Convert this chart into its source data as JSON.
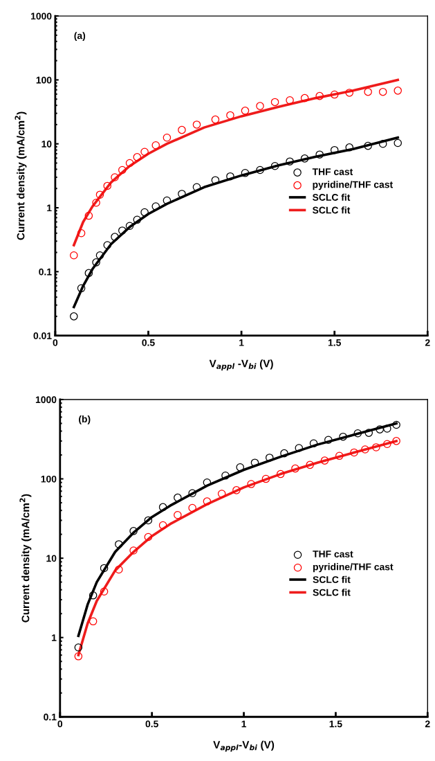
{
  "chart_data": [
    {
      "type": "scatter",
      "xlabel": "V$_{appl}$ -V$_{bi}$ (V)",
      "ylabel": "Current density (mA/cm$^{2}$)",
      "annotations": [
        "(a)"
      ],
      "log": "y",
      "legend": "center right",
      "xlim": [
        0,
        2
      ],
      "xticks": [
        0,
        0.5,
        1,
        1.5,
        2
      ],
      "ylim": [
        0.01,
        1000
      ],
      "yticks": [
        0.01,
        0.1,
        1,
        10,
        100,
        1000
      ],
      "series": [
        {
          "name": "THF cast",
          "marker": "circle",
          "color": "#000000",
          "x": [
            0.1,
            0.14,
            0.18,
            0.22,
            0.24,
            0.28,
            0.32,
            0.36,
            0.4,
            0.44,
            0.48,
            0.54,
            0.6,
            0.68,
            0.76,
            0.86,
            0.94,
            1.02,
            1.1,
            1.18,
            1.26,
            1.34,
            1.42,
            1.5,
            1.58,
            1.68,
            1.76,
            1.84
          ],
          "values": [
            0.02,
            0.055,
            0.095,
            0.14,
            0.18,
            0.26,
            0.35,
            0.44,
            0.52,
            0.65,
            0.85,
            1.05,
            1.3,
            1.65,
            2.1,
            2.7,
            3.1,
            3.5,
            3.9,
            4.5,
            5.3,
            5.9,
            6.8,
            8,
            8.8,
            9.3,
            10,
            10.3
          ]
        },
        {
          "name": "pyridine/THF cast",
          "marker": "circle",
          "color": "#ff0000",
          "x": [
            0.1,
            0.14,
            0.18,
            0.22,
            0.24,
            0.28,
            0.32,
            0.36,
            0.4,
            0.44,
            0.48,
            0.54,
            0.6,
            0.68,
            0.76,
            0.86,
            0.94,
            1.02,
            1.1,
            1.18,
            1.26,
            1.34,
            1.42,
            1.5,
            1.58,
            1.68,
            1.76,
            1.84
          ],
          "values": [
            0.18,
            0.4,
            0.75,
            1.2,
            1.6,
            2.2,
            3,
            3.9,
            5,
            6.2,
            7.5,
            9.5,
            12.5,
            16.5,
            20,
            24,
            28,
            33,
            39,
            45,
            48,
            52,
            56,
            59,
            63,
            65,
            65,
            68
          ]
        },
        {
          "name": "SCLC fit",
          "type": "line",
          "marker": "none",
          "line_style": "solid",
          "color": "#000000",
          "x": [
            0.1,
            0.15,
            0.2,
            0.3,
            0.4,
            0.5,
            0.6,
            0.8,
            1.0,
            1.2,
            1.4,
            1.6,
            1.84
          ],
          "values": [
            0.028,
            0.06,
            0.11,
            0.27,
            0.5,
            0.8,
            1.15,
            2.1,
            3.2,
            4.6,
            6.3,
            8.3,
            12.5
          ]
        },
        {
          "name": "SCLC fit",
          "type": "line",
          "marker": "none",
          "line_style": "solid",
          "color": "#ee1c1c",
          "x": [
            0.1,
            0.15,
            0.2,
            0.3,
            0.4,
            0.5,
            0.6,
            0.8,
            1.0,
            1.2,
            1.4,
            1.6,
            1.84
          ],
          "values": [
            0.26,
            0.6,
            1.05,
            2.5,
            4.5,
            7,
            10,
            18,
            27,
            38,
            52,
            68,
            100
          ]
        }
      ]
    },
    {
      "type": "scatter",
      "xlabel": "V$_{appl}$-V$_{bi}$ (V)",
      "ylabel": "Current density (mA/cm$^{2}$)",
      "annotations": [
        "(b)"
      ],
      "log": "y",
      "legend": "center right",
      "xlim": [
        0,
        2
      ],
      "xticks": [
        0,
        0.5,
        1,
        1.5,
        2
      ],
      "ylim": [
        0.1,
        1000
      ],
      "yticks": [
        0.1,
        1,
        10,
        100,
        1000
      ],
      "series": [
        {
          "name": "THF cast",
          "marker": "circle",
          "color": "#000000",
          "x": [
            0.1,
            0.18,
            0.24,
            0.32,
            0.4,
            0.48,
            0.56,
            0.64,
            0.72,
            0.8,
            0.9,
            0.98,
            1.06,
            1.14,
            1.22,
            1.3,
            1.38,
            1.46,
            1.54,
            1.62,
            1.68,
            1.74,
            1.78,
            1.83
          ],
          "values": [
            0.75,
            3.4,
            7.5,
            15,
            22,
            30,
            44,
            58,
            66,
            90,
            110,
            140,
            160,
            185,
            210,
            245,
            280,
            310,
            340,
            375,
            380,
            420,
            430,
            480
          ]
        },
        {
          "name": "pyridine/THF cast",
          "marker": "circle",
          "color": "#ff0000",
          "x": [
            0.1,
            0.18,
            0.24,
            0.32,
            0.4,
            0.48,
            0.56,
            0.64,
            0.72,
            0.8,
            0.88,
            0.96,
            1.04,
            1.12,
            1.2,
            1.28,
            1.36,
            1.44,
            1.52,
            1.6,
            1.66,
            1.72,
            1.78,
            1.83
          ],
          "values": [
            0.58,
            1.6,
            3.8,
            7.2,
            12.5,
            18.5,
            26,
            35,
            43,
            52,
            65,
            72,
            86,
            100,
            115,
            135,
            150,
            170,
            195,
            215,
            235,
            250,
            275,
            300
          ]
        },
        {
          "name": "SCLC fit",
          "type": "line",
          "marker": "none",
          "line_style": "solid",
          "color": "#000000",
          "x": [
            0.1,
            0.15,
            0.2,
            0.3,
            0.4,
            0.5,
            0.6,
            0.8,
            1.0,
            1.2,
            1.4,
            1.6,
            1.83
          ],
          "values": [
            1.05,
            2.6,
            5,
            12,
            21,
            33,
            46,
            82,
            130,
            190,
            270,
            360,
            500
          ]
        },
        {
          "name": "SCLC fit",
          "type": "line",
          "marker": "none",
          "line_style": "solid",
          "color": "#ee1c1c",
          "x": [
            0.1,
            0.15,
            0.2,
            0.3,
            0.4,
            0.5,
            0.6,
            0.8,
            1.0,
            1.2,
            1.4,
            1.6,
            1.83
          ],
          "values": [
            0.6,
            1.5,
            2.9,
            7,
            12,
            19,
            27,
            48,
            78,
            115,
            160,
            215,
            300
          ]
        }
      ]
    }
  ]
}
